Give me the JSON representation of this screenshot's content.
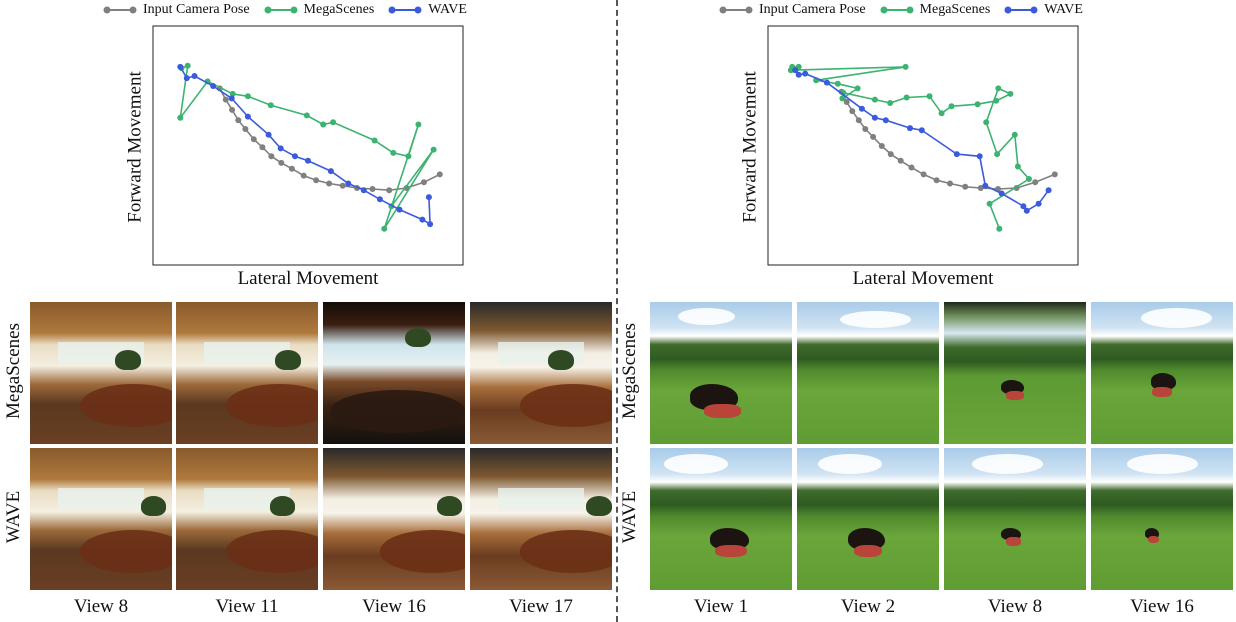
{
  "legend": {
    "items": [
      {
        "label": "Input Camera Pose",
        "color": "#808080"
      },
      {
        "label": "MegaScenes",
        "color": "#3cb371"
      },
      {
        "label": "WAVE",
        "color": "#3b5bdb"
      }
    ]
  },
  "chart_data": [
    {
      "type": "line",
      "xlabel": "Lateral Movement",
      "ylabel": "Forward Movement",
      "xlim": [
        0,
        100
      ],
      "ylim": [
        0,
        100
      ],
      "grid": false,
      "legend_position": "top",
      "series": [
        {
          "name": "Input Camera Pose",
          "color": "#808080",
          "x": [
            21.5,
            23.5,
            25.5,
            27.5,
            29.8,
            32.5,
            35.3,
            38.2,
            41.4,
            44.8,
            48.6,
            52.6,
            56.8,
            61.2,
            65.8,
            70.8,
            76.2,
            81.8,
            87.4,
            92.5
          ],
          "y": [
            73.9,
            69.2,
            64.9,
            60.6,
            56.9,
            52.6,
            49.3,
            45.5,
            42.7,
            40.3,
            37.4,
            35.5,
            34.1,
            33.2,
            32.2,
            31.8,
            31.3,
            32.2,
            34.6,
            37.9
          ]
        },
        {
          "name": "MegaScenes",
          "color": "#3cb371",
          "x": [
            9.2,
            11.2,
            8.8,
            17.6,
            25.7,
            30.6,
            38.0,
            49.6,
            54.9,
            58.1,
            71.5,
            77.5,
            82.4,
            85.6,
            74.6,
            90.5,
            76.9
          ],
          "y": [
            82.4,
            83.4,
            61.6,
            76.8,
            71.6,
            70.6,
            66.8,
            62.6,
            58.8,
            59.7,
            52.1,
            46.9,
            45.5,
            58.8,
            15.2,
            48.3,
            24.6
          ]
        },
        {
          "name": "WAVE",
          "color": "#3b5bdb",
          "x": [
            8.8,
            10.9,
            13.4,
            19.4,
            25.4,
            30.6,
            37.3,
            41.2,
            45.8,
            50.0,
            57.4,
            63.0,
            68.0,
            73.2,
            79.5,
            86.9,
            89.4,
            89.0
          ],
          "y": [
            82.9,
            78.2,
            79.1,
            74.9,
            69.7,
            62.1,
            54.5,
            48.8,
            45.5,
            43.6,
            39.3,
            34.1,
            31.3,
            27.5,
            23.2,
            19.0,
            17.1,
            28.4
          ]
        }
      ]
    },
    {
      "type": "line",
      "xlabel": "Lateral Movement",
      "ylabel": "Forward Movement",
      "xlim": [
        0,
        100
      ],
      "ylim": [
        0,
        100
      ],
      "grid": false,
      "legend_position": "top",
      "series": [
        {
          "name": "Input Camera Pose",
          "color": "#808080",
          "x": [
            23.7,
            25.4,
            27.2,
            29.3,
            31.4,
            33.9,
            36.7,
            39.6,
            42.8,
            46.3,
            50.2,
            54.4,
            58.7,
            63.6,
            68.6,
            74.2,
            80.2,
            86.2,
            92.5
          ],
          "y": [
            72.5,
            68.2,
            64.4,
            60.6,
            56.9,
            53.6,
            49.8,
            46.4,
            43.6,
            40.8,
            37.9,
            35.5,
            34.1,
            32.7,
            32.2,
            31.8,
            32.2,
            34.6,
            37.9
          ]
        },
        {
          "name": "MegaScenes",
          "color": "#3cb371",
          "x": [
            7.8,
            9.9,
            7.4,
            44.4,
            15.5,
            22.5,
            28.9,
            24.0,
            24.3,
            34.5,
            39.4,
            44.7,
            52.1,
            56.0,
            59.2,
            67.6,
            73.6,
            78.2,
            74.3,
            70.4,
            73.9,
            79.6,
            80.6,
            84.2,
            71.5,
            74.6
          ],
          "y": [
            82.9,
            82.9,
            81.5,
            82.9,
            77.3,
            75.8,
            73.9,
            69.7,
            72.1,
            69.2,
            67.8,
            70.1,
            70.6,
            63.5,
            66.4,
            67.3,
            68.7,
            71.6,
            73.9,
            59.7,
            46.4,
            54.5,
            41.2,
            36.0,
            25.6,
            15.2
          ]
        },
        {
          "name": "WAVE",
          "color": "#3b5bdb",
          "x": [
            8.8,
            9.9,
            12.0,
            19.0,
            30.3,
            34.5,
            38.0,
            45.8,
            49.6,
            60.9,
            68.3,
            70.1,
            75.4,
            82.4,
            83.5,
            87.3,
            90.5
          ],
          "y": [
            81.5,
            79.6,
            80.1,
            76.3,
            65.4,
            61.6,
            60.6,
            57.3,
            56.4,
            46.4,
            45.5,
            33.2,
            29.9,
            24.6,
            22.7,
            25.6,
            31.3
          ]
        }
      ]
    }
  ],
  "left": {
    "row_labels": [
      "MegaScenes",
      "WAVE"
    ],
    "view_labels": [
      "View 8",
      "View 11",
      "View 16",
      "View 17"
    ]
  },
  "right": {
    "row_labels": [
      "MegaScenes",
      "WAVE"
    ],
    "view_labels": [
      "View 1",
      "View 2",
      "View 8",
      "View 16"
    ]
  }
}
